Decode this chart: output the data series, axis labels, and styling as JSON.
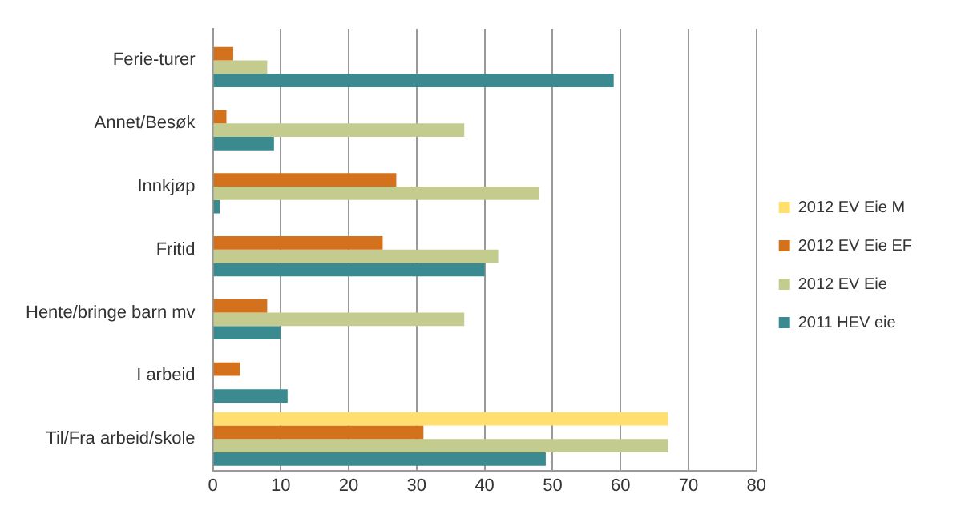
{
  "chart_data": {
    "type": "bar",
    "orientation": "horizontal",
    "categories": [
      "Ferie-turer",
      "Annet/Besøk",
      "Innkjøp",
      "Fritid",
      "Hente/bringe barn mv",
      "I arbeid",
      "Til/Fra arbeid/skole"
    ],
    "series": [
      {
        "name": "2012 EV Eie M",
        "color": "#ffdf70",
        "values": [
          null,
          null,
          null,
          null,
          null,
          null,
          67
        ]
      },
      {
        "name": "2012 EV Eie EF",
        "color": "#d4711c",
        "values": [
          3,
          2,
          27,
          25,
          8,
          4,
          31
        ]
      },
      {
        "name": "2012 EV Eie",
        "color": "#c3cc8e",
        "values": [
          8,
          37,
          48,
          42,
          37,
          null,
          67
        ]
      },
      {
        "name": "2011 HEV eie",
        "color": "#3a8a8f",
        "values": [
          59,
          9,
          1,
          40,
          10,
          11,
          49
        ]
      }
    ],
    "xlim": [
      0,
      80
    ],
    "xticks": [
      0,
      10,
      20,
      30,
      40,
      50,
      60,
      70,
      80
    ],
    "grid": "x",
    "legend": "right"
  }
}
